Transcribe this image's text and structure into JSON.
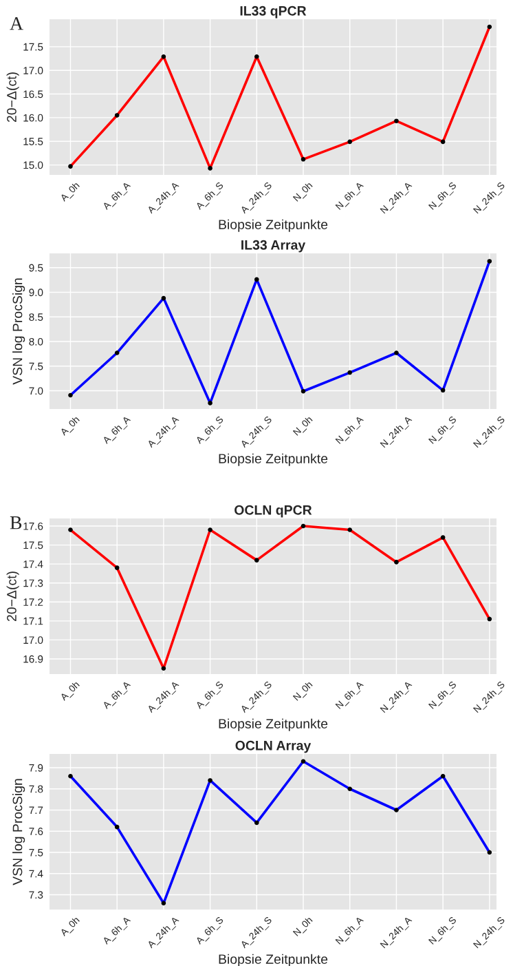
{
  "chart_data": [
    {
      "type": "line",
      "title": "IL33 qPCR",
      "xlabel": "Biopsie Zeitpunkte",
      "ylabel": "20−Δ(ct)",
      "annotations": [
        "A"
      ],
      "categories": [
        "A_0h",
        "A_6h_A",
        "A_24h_A",
        "A_6h_S",
        "A_24h_S",
        "N_0h",
        "N_6h_A",
        "N_24h_A",
        "N_6h_S",
        "N_24h_S"
      ],
      "series": [
        {
          "color": "#ff0000",
          "values": [
            14.97,
            16.05,
            17.29,
            14.93,
            17.29,
            15.12,
            15.49,
            15.93,
            15.49,
            17.92
          ]
        }
      ],
      "ylim": [
        14.79,
        18.08
      ],
      "yticks": [
        {
          "value": 15.0,
          "label": "15.0"
        },
        {
          "value": 15.5,
          "label": "15.5"
        },
        {
          "value": 16.0,
          "label": "16.0"
        },
        {
          "value": 16.5,
          "label": "16.5"
        },
        {
          "value": 17.0,
          "label": "17.0"
        },
        {
          "value": 17.5,
          "label": "17.5"
        }
      ],
      "grid": true,
      "marker": "circle",
      "line_style": "solid"
    },
    {
      "type": "line",
      "title": "IL33 Array",
      "xlabel": "Biopsie Zeitpunkte",
      "ylabel": "VSN log ProcSign",
      "categories": [
        "A_0h",
        "A_6h_A",
        "A_24h_A",
        "A_6h_S",
        "A_24h_S",
        "N_0h",
        "N_6h_A",
        "N_24h_A",
        "N_6h_S",
        "N_24h_S"
      ],
      "series": [
        {
          "color": "#0000ff",
          "values": [
            6.91,
            7.77,
            8.88,
            6.75,
            9.26,
            6.99,
            7.37,
            7.77,
            7.01,
            9.63
          ]
        }
      ],
      "ylim": [
        6.63,
        9.79
      ],
      "yticks": [
        {
          "value": 7.0,
          "label": "7.0"
        },
        {
          "value": 7.5,
          "label": "7.5"
        },
        {
          "value": 8.0,
          "label": "8.0"
        },
        {
          "value": 8.5,
          "label": "8.5"
        },
        {
          "value": 9.0,
          "label": "9.0"
        },
        {
          "value": 9.5,
          "label": "9.5"
        }
      ],
      "grid": true,
      "marker": "circle",
      "line_style": "solid"
    },
    {
      "type": "line",
      "title": "OCLN qPCR",
      "xlabel": "Biopsie Zeitpunkte",
      "ylabel": "20−Δ(ct)",
      "annotations": [
        "B"
      ],
      "categories": [
        "A_0h",
        "A_6h_A",
        "A_24h_A",
        "A_6h_S",
        "A_24h_S",
        "N_0h",
        "N_6h_A",
        "N_24h_A",
        "N_6h_S",
        "N_24h_S"
      ],
      "series": [
        {
          "color": "#ff0000",
          "values": [
            17.58,
            17.38,
            16.85,
            17.58,
            17.42,
            17.6,
            17.58,
            17.41,
            17.54,
            17.11
          ]
        }
      ],
      "ylim": [
        16.82,
        17.64
      ],
      "yticks": [
        {
          "value": 16.9,
          "label": "16.9"
        },
        {
          "value": 17.0,
          "label": "17.0"
        },
        {
          "value": 17.1,
          "label": "17.1"
        },
        {
          "value": 17.2,
          "label": "17.2"
        },
        {
          "value": 17.3,
          "label": "17.3"
        },
        {
          "value": 17.4,
          "label": "17.4"
        },
        {
          "value": 17.5,
          "label": "17.5"
        },
        {
          "value": 17.6,
          "label": "17.6"
        }
      ],
      "grid": true,
      "marker": "circle",
      "line_style": "solid"
    },
    {
      "type": "line",
      "title": "OCLN Array",
      "xlabel": "Biopsie Zeitpunkte",
      "ylabel": "VSN log ProcSign",
      "categories": [
        "A_0h",
        "A_6h_A",
        "A_24h_A",
        "A_6h_S",
        "A_24h_S",
        "N_0h",
        "N_6h_A",
        "N_24h_A",
        "N_6h_S",
        "N_24h_S"
      ],
      "series": [
        {
          "color": "#0000ff",
          "values": [
            7.86,
            7.62,
            7.26,
            7.84,
            7.64,
            7.93,
            7.8,
            7.7,
            7.86,
            7.5
          ]
        }
      ],
      "ylim": [
        7.23,
        7.965
      ],
      "yticks": [
        {
          "value": 7.3,
          "label": "7.3"
        },
        {
          "value": 7.4,
          "label": "7.4"
        },
        {
          "value": 7.5,
          "label": "7.5"
        },
        {
          "value": 7.6,
          "label": "7.6"
        },
        {
          "value": 7.7,
          "label": "7.7"
        },
        {
          "value": 7.8,
          "label": "7.8"
        },
        {
          "value": 7.9,
          "label": "7.9"
        }
      ],
      "grid": true,
      "marker": "circle",
      "line_style": "solid"
    }
  ]
}
